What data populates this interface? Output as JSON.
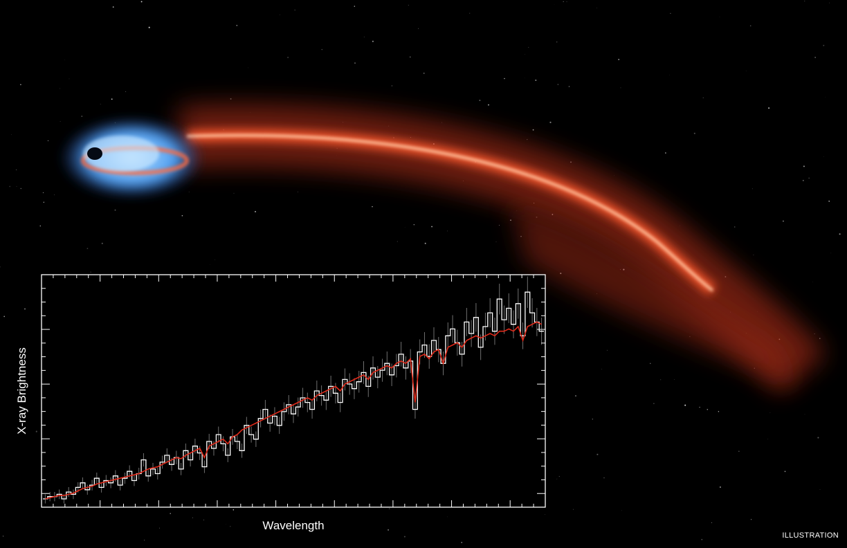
{
  "credit_label": "ILLUSTRATION",
  "colors": {
    "background": "#000000",
    "stream": "#ff5a2e",
    "stream_core": "#ffd6b0",
    "disk": "#5aaeff",
    "model_line": "#e02a1a",
    "data_line": "#ffffff",
    "axes": "#ffffff"
  },
  "chart_data": {
    "type": "line",
    "title": "",
    "xlabel": "Wavelength",
    "ylabel": "X-ray Brightness",
    "grid": false,
    "legend": "none",
    "x_tick_labels": false,
    "y_tick_labels": false,
    "xlim": [
      0,
      1
    ],
    "ylim": [
      0,
      1
    ],
    "series": [
      {
        "style": "observed spectrum (white step line with error bars)",
        "values": [
          0.03,
          0.04,
          0.04,
          0.05,
          0.03,
          0.06,
          0.05,
          0.08,
          0.1,
          0.07,
          0.09,
          0.12,
          0.08,
          0.11,
          0.1,
          0.13,
          0.09,
          0.12,
          0.15,
          0.11,
          0.14,
          0.2,
          0.13,
          0.16,
          0.14,
          0.19,
          0.22,
          0.18,
          0.21,
          0.16,
          0.24,
          0.2,
          0.26,
          0.23,
          0.17,
          0.28,
          0.25,
          0.31,
          0.27,
          0.22,
          0.3,
          0.28,
          0.24,
          0.35,
          0.31,
          0.29,
          0.38,
          0.42,
          0.36,
          0.39,
          0.35,
          0.41,
          0.44,
          0.4,
          0.43,
          0.47,
          0.45,
          0.42,
          0.5,
          0.48,
          0.46,
          0.52,
          0.49,
          0.45,
          0.55,
          0.53,
          0.51,
          0.54,
          0.58,
          0.52,
          0.6,
          0.56,
          0.59,
          0.62,
          0.57,
          0.61,
          0.66,
          0.6,
          0.63,
          0.42,
          0.67,
          0.7,
          0.65,
          0.72,
          0.68,
          0.62,
          0.74,
          0.77,
          0.71,
          0.66,
          0.8,
          0.75,
          0.82,
          0.69,
          0.78,
          0.84,
          0.76,
          0.9,
          0.81,
          0.86,
          0.79,
          0.88,
          0.74,
          0.93,
          0.84,
          0.8,
          0.76
        ]
      },
      {
        "style": "model fit (red line)",
        "values": [
          0.03,
          0.035,
          0.04,
          0.045,
          0.045,
          0.05,
          0.055,
          0.065,
          0.075,
          0.08,
          0.085,
          0.095,
          0.1,
          0.105,
          0.11,
          0.115,
          0.12,
          0.125,
          0.13,
          0.135,
          0.14,
          0.15,
          0.16,
          0.165,
          0.17,
          0.18,
          0.19,
          0.2,
          0.21,
          0.205,
          0.22,
          0.23,
          0.24,
          0.25,
          0.21,
          0.26,
          0.27,
          0.28,
          0.29,
          0.27,
          0.3,
          0.31,
          0.33,
          0.34,
          0.35,
          0.36,
          0.37,
          0.38,
          0.39,
          0.4,
          0.41,
          0.42,
          0.43,
          0.44,
          0.45,
          0.46,
          0.47,
          0.46,
          0.48,
          0.49,
          0.5,
          0.51,
          0.52,
          0.5,
          0.53,
          0.54,
          0.55,
          0.56,
          0.57,
          0.55,
          0.58,
          0.59,
          0.6,
          0.61,
          0.6,
          0.62,
          0.63,
          0.62,
          0.64,
          0.45,
          0.65,
          0.66,
          0.64,
          0.67,
          0.68,
          0.62,
          0.69,
          0.7,
          0.71,
          0.69,
          0.72,
          0.73,
          0.74,
          0.73,
          0.74,
          0.75,
          0.74,
          0.76,
          0.76,
          0.77,
          0.76,
          0.78,
          0.72,
          0.78,
          0.79,
          0.8,
          0.79
        ]
      }
    ]
  }
}
